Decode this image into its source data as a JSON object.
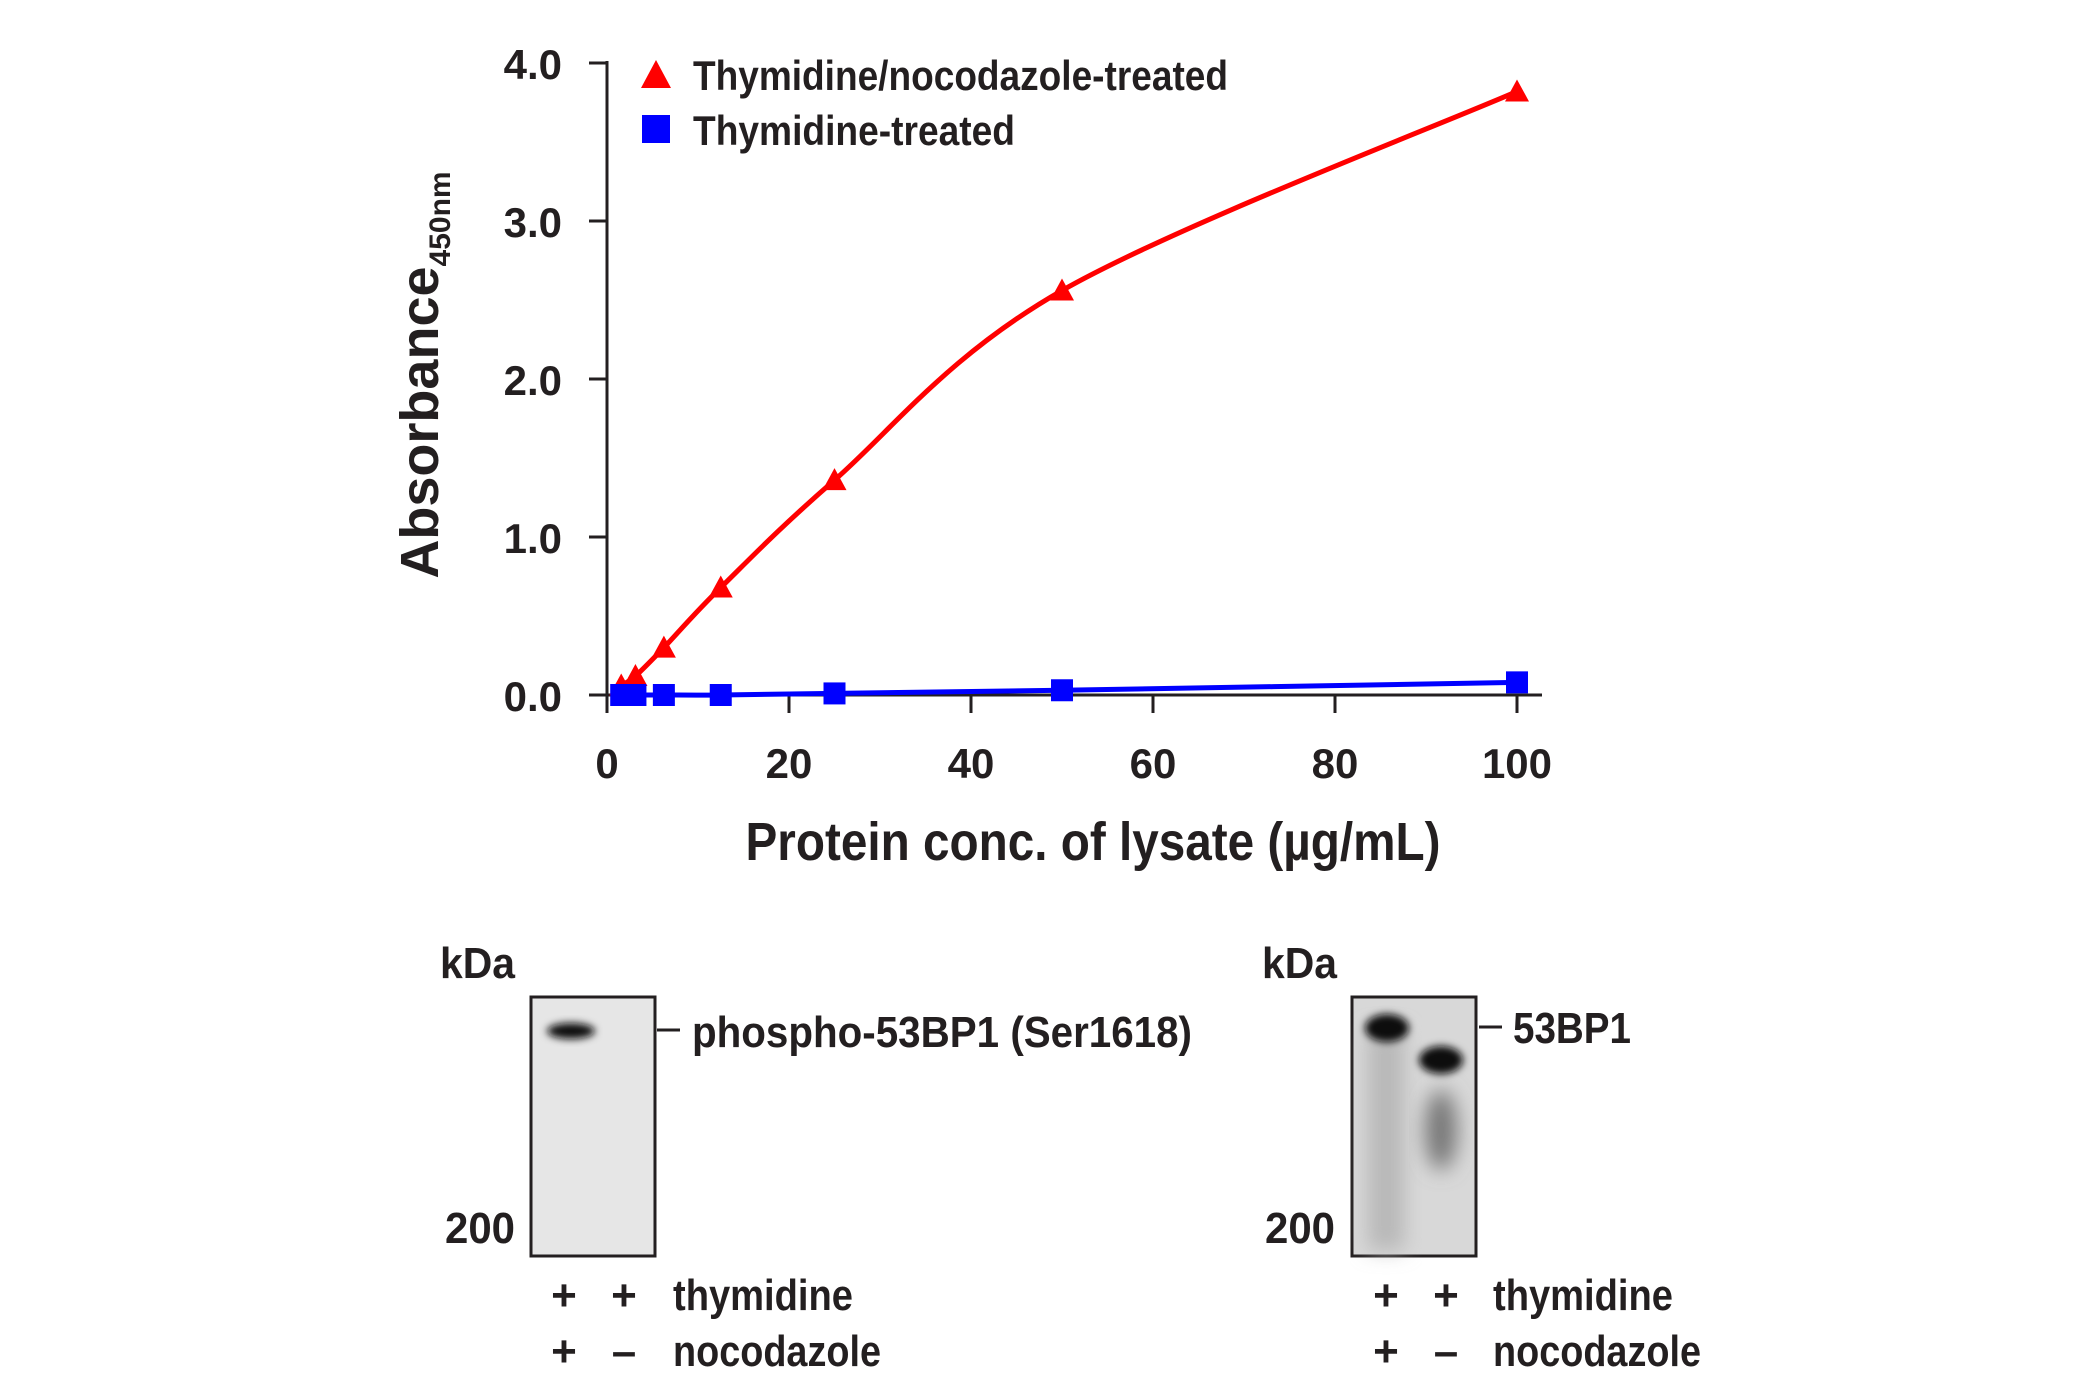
{
  "chart_data": {
    "type": "line",
    "title": "",
    "xlabel": "Protein conc. of lysate (µg/mL)",
    "ylabel": "Absorbance",
    "ylabel_subscript": "450nm",
    "xlim": [
      0,
      100
    ],
    "ylim": [
      0,
      4.0
    ],
    "xticks": [
      "0",
      "20",
      "40",
      "60",
      "80",
      "100"
    ],
    "yticks": [
      "0.0",
      "1.0",
      "2.0",
      "3.0",
      "4.0"
    ],
    "grid": false,
    "legend_position": "top-left",
    "series": [
      {
        "name": "Thymidine/nocodazole-treated",
        "marker": "triangle",
        "color": "#ff0000",
        "x": [
          1.5625,
          3.125,
          6.25,
          12.5,
          25,
          50,
          100
        ],
        "y": [
          0.06,
          0.12,
          0.3,
          0.68,
          1.36,
          2.56,
          3.82
        ]
      },
      {
        "name": "Thymidine-treated",
        "marker": "square",
        "color": "#0000ff",
        "x": [
          1.5625,
          3.125,
          6.25,
          12.5,
          25,
          50,
          100
        ],
        "y": [
          0.0,
          0.0,
          0.0,
          0.0,
          0.01,
          0.03,
          0.08
        ]
      }
    ]
  },
  "blots": [
    {
      "kda": "kDa",
      "marker": "200",
      "band_label": "phospho-53BP1 (Ser1618)",
      "rows": [
        {
          "label": "thymidine",
          "lanes": [
            "+",
            "+"
          ]
        },
        {
          "label": "nocodazole",
          "lanes": [
            "+",
            "–"
          ]
        }
      ]
    },
    {
      "kda": "kDa",
      "marker": "200",
      "band_label": "53BP1",
      "rows": [
        {
          "label": "thymidine",
          "lanes": [
            "+",
            "+"
          ]
        },
        {
          "label": "nocodazole",
          "lanes": [
            "+",
            "–"
          ]
        }
      ]
    }
  ]
}
